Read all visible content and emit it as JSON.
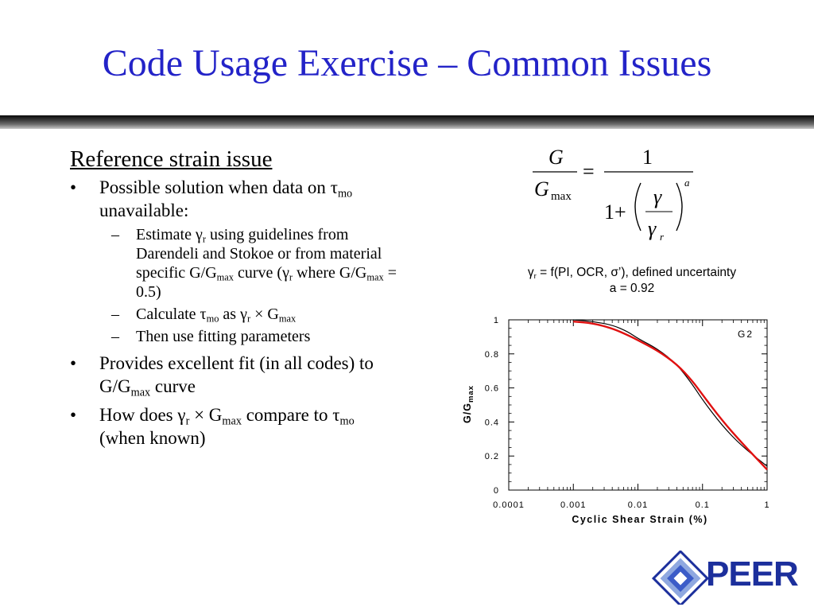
{
  "slide": {
    "title": "Code Usage Exercise – Common Issues"
  },
  "left": {
    "heading": "Reference strain issue",
    "bullet1": {
      "pre": "Possible solution when data on ",
      "tau": "τ",
      "sub": "mo",
      "post": " unavailable:"
    },
    "sub1": {
      "a": "Estimate ",
      "g": "γ",
      "gsub": "r",
      "b": " using guidelines from Darendeli and Stokoe or from material specific G/G",
      "msub": "max",
      "c": " curve (",
      "g2": "γ",
      "g2sub": "r",
      "d": " where G/G",
      "m2sub": "max",
      "e": " = 0.5)"
    },
    "sub2": {
      "a": "Calculate ",
      "tau": "τ",
      "tsub": "mo",
      "b": " as ",
      "g": "γ",
      "gsub": "r",
      "c": " × G",
      "msub": "max"
    },
    "sub3": "Then use fitting parameters",
    "bullet2": {
      "a": "Provides excellent fit (in all codes) to G/G",
      "msub": "max",
      "b": " curve"
    },
    "bullet3": {
      "a": "How does ",
      "g": "γ",
      "gsub": "r",
      "b": " × G",
      "msub": "max",
      "c": " compare to ",
      "tau": "τ",
      "tsub": "mo",
      "d": " (when known)"
    }
  },
  "formula": {
    "G": "G",
    "Gmax_G": "G",
    "Gmax_sub": "max",
    "equals": "=",
    "one": "1",
    "one_plus": "1+",
    "gamma": "γ",
    "gamma_r": "γ",
    "r": "r",
    "exp": "a",
    "paren_l": "(",
    "paren_r": ")"
  },
  "note": {
    "line1": {
      "g": "γ",
      "gsub": "r",
      "a": " = f(PI, OCR, ",
      "sigma": "σ",
      "b": "’), defined uncertainty"
    },
    "line2": "a = 0.92"
  },
  "chart_data": {
    "type": "line",
    "xscale": "log",
    "xlim": [
      0.0001,
      1
    ],
    "ylim": [
      0,
      1
    ],
    "x_ticks": [
      0.0001,
      0.001,
      0.01,
      0.1,
      1
    ],
    "x_tick_labels": [
      "0.0001",
      "0.001",
      "0.01",
      "0.1",
      "1"
    ],
    "y_ticks": [
      0,
      0.2,
      0.4,
      0.6,
      0.8,
      1
    ],
    "y_tick_labels": [
      "0",
      "0.2",
      "0.4",
      "0.6",
      "0.8",
      "1"
    ],
    "xlabel": "Cyclic Shear Strain (%)",
    "ylabel": "G/G",
    "ylabel_sub": "max",
    "annotation": "G2",
    "grid": false,
    "series": [
      {
        "color": "#000000",
        "x": [
          0.001,
          0.002,
          0.004,
          0.007,
          0.01,
          0.02,
          0.04,
          0.07,
          0.1,
          0.2,
          0.4,
          1
        ],
        "y": [
          1.0,
          0.99,
          0.97,
          0.93,
          0.89,
          0.83,
          0.74,
          0.62,
          0.53,
          0.38,
          0.26,
          0.14
        ]
      },
      {
        "color": "#e01010",
        "x": [
          0.001,
          0.002,
          0.004,
          0.007,
          0.01,
          0.02,
          0.04,
          0.07,
          0.1,
          0.2,
          0.4,
          1
        ],
        "y": [
          0.99,
          0.98,
          0.95,
          0.91,
          0.88,
          0.82,
          0.74,
          0.64,
          0.56,
          0.41,
          0.28,
          0.12
        ]
      }
    ]
  },
  "logo": {
    "text": "PEER"
  }
}
